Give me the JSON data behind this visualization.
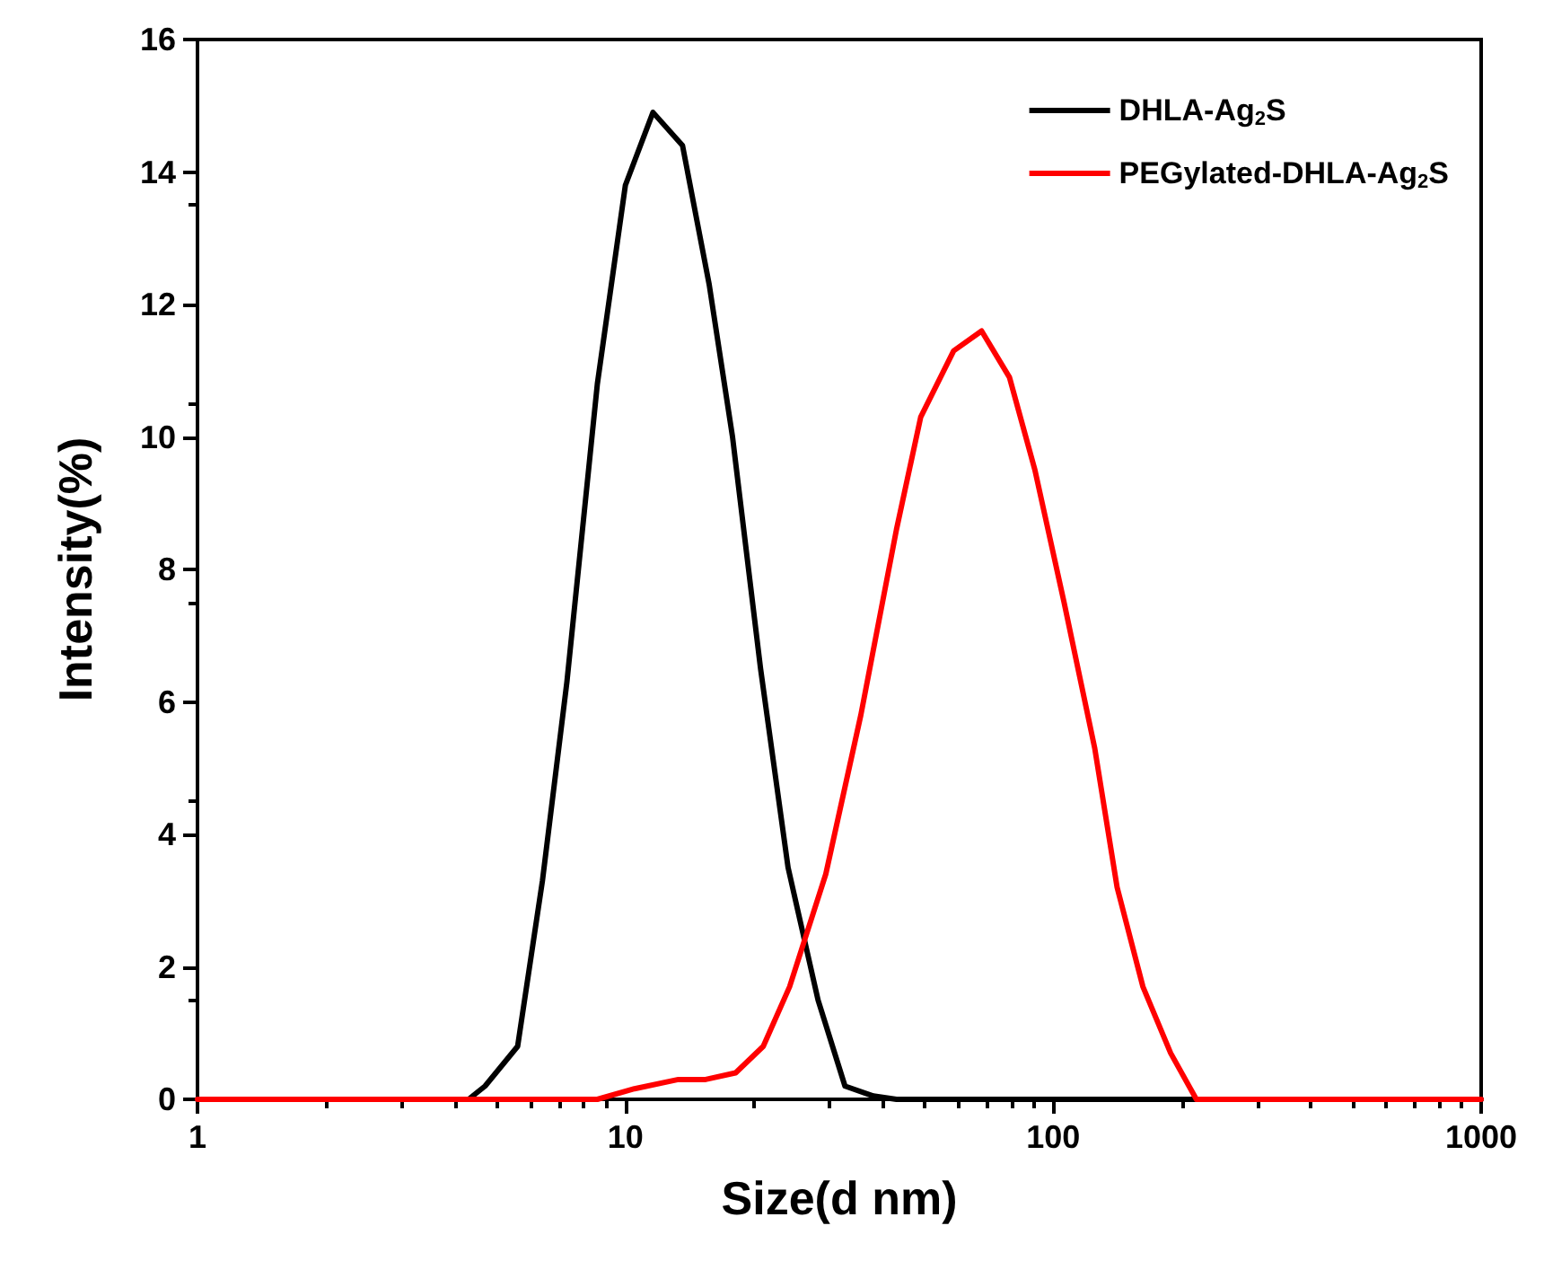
{
  "chart_data": {
    "type": "line",
    "xlabel": "Size(d nm)",
    "ylabel": "Intensity(%)",
    "xlim": [
      1,
      1000
    ],
    "xticks": [
      1,
      10,
      100,
      1000
    ],
    "ylim": [
      0,
      16
    ],
    "yticks": [
      0,
      2,
      4,
      6,
      8,
      10,
      12,
      14,
      16
    ],
    "log": "x",
    "grid": false,
    "legend": "top right",
    "marker": "none",
    "line_style": "solid",
    "series": [
      {
        "name": "DHLA-Ag$_{2}$S",
        "color": "#000000",
        "x": [
          1,
          4.3,
          4.7,
          5.6,
          6.4,
          7.3,
          8.6,
          10,
          11.6,
          13.6,
          15.7,
          17.8,
          20.7,
          24,
          28.2,
          32.6,
          38,
          43,
          1000
        ],
        "values": [
          0,
          0,
          0.2,
          0.8,
          3.3,
          6.3,
          10.8,
          13.8,
          14.9,
          14.4,
          12.3,
          10,
          6.5,
          3.5,
          1.5,
          0.2,
          0.05,
          0,
          0
        ]
      },
      {
        "name": "PEGylated-DHLA-Ag$_{2}$S",
        "color": "#ff0000",
        "x": [
          1,
          8.6,
          10.5,
          13.3,
          15.4,
          18.1,
          21,
          24.2,
          29.4,
          35.5,
          43,
          49,
          58.5,
          68,
          79,
          90.6,
          106,
          125,
          141,
          162,
          188,
          216,
          1000
        ],
        "values": [
          0,
          0,
          0.16,
          0.3,
          0.3,
          0.4,
          0.8,
          1.7,
          3.4,
          5.8,
          8.6,
          10.3,
          11.3,
          11.6,
          10.9,
          9.5,
          7.5,
          5.3,
          3.2,
          1.7,
          0.7,
          0,
          0
        ]
      }
    ]
  }
}
